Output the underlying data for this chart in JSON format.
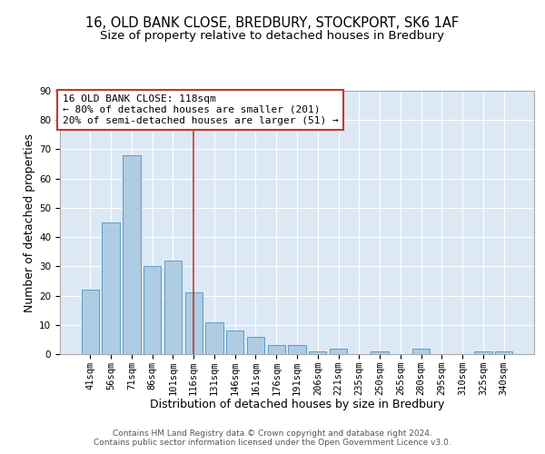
{
  "title1": "16, OLD BANK CLOSE, BREDBURY, STOCKPORT, SK6 1AF",
  "title2": "Size of property relative to detached houses in Bredbury",
  "xlabel": "Distribution of detached houses by size in Bredbury",
  "ylabel": "Number of detached properties",
  "categories": [
    "41sqm",
    "56sqm",
    "71sqm",
    "86sqm",
    "101sqm",
    "116sqm",
    "131sqm",
    "146sqm",
    "161sqm",
    "176sqm",
    "191sqm",
    "206sqm",
    "221sqm",
    "235sqm",
    "250sqm",
    "265sqm",
    "280sqm",
    "295sqm",
    "310sqm",
    "325sqm",
    "340sqm"
  ],
  "values": [
    22,
    45,
    68,
    30,
    32,
    21,
    11,
    8,
    6,
    3,
    3,
    1,
    2,
    0,
    1,
    0,
    2,
    0,
    0,
    1,
    1
  ],
  "bar_color": "#aecce4",
  "bar_edge_color": "#5a9dc5",
  "vline_x_index": 5,
  "vline_color": "#c0392b",
  "annotation_line1": "16 OLD BANK CLOSE: 118sqm",
  "annotation_line2": "← 80% of detached houses are smaller (201)",
  "annotation_line3": "20% of semi-detached houses are larger (51) →",
  "annotation_box_color": "#c0392b",
  "background_color": "#dce9f5",
  "ylim": [
    0,
    90
  ],
  "yticks": [
    0,
    10,
    20,
    30,
    40,
    50,
    60,
    70,
    80,
    90
  ],
  "footer1": "Contains HM Land Registry data © Crown copyright and database right 2024.",
  "footer2": "Contains public sector information licensed under the Open Government Licence v3.0.",
  "title1_fontsize": 10.5,
  "title2_fontsize": 9.5,
  "xlabel_fontsize": 9,
  "ylabel_fontsize": 9,
  "tick_fontsize": 7.5,
  "annotation_fontsize": 8,
  "footer_fontsize": 6.5
}
